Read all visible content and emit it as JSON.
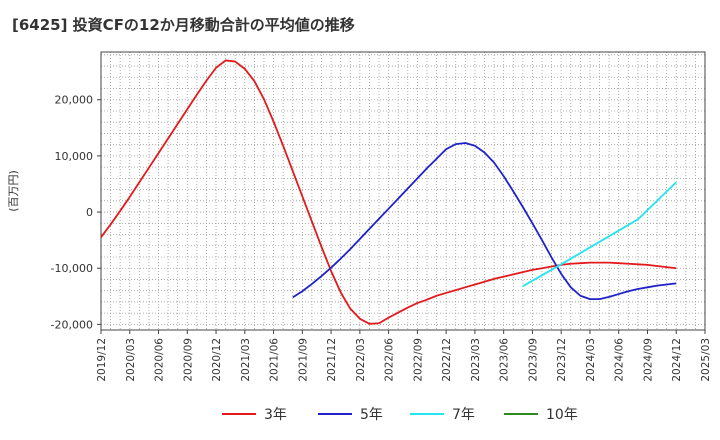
{
  "chart_data": {
    "type": "line",
    "title": "[6425]  投資CFの12か月移動合計の平均値の推移",
    "ylabel": "(百万円)",
    "xlabel": "",
    "grid": true,
    "legend_position": "bottom",
    "ylim": [
      -21000,
      28500
    ],
    "xlim": [
      "2019-12",
      "2025-03"
    ],
    "y_ticks": [
      {
        "value": 20000,
        "label": "20,000"
      },
      {
        "value": 10000,
        "label": "10,000"
      },
      {
        "value": 0,
        "label": "0"
      },
      {
        "value": -10000,
        "label": "-10,000"
      },
      {
        "value": -20000,
        "label": "-20,000"
      }
    ],
    "x_ticks": [
      "2019/12",
      "2020/03",
      "2020/06",
      "2020/09",
      "2020/12",
      "2021/03",
      "2021/06",
      "2021/09",
      "2021/12",
      "2022/03",
      "2022/06",
      "2022/09",
      "2022/12",
      "2023/03",
      "2023/06",
      "2023/09",
      "2023/12",
      "2024/03",
      "2024/06",
      "2024/09",
      "2024/12",
      "2025/03"
    ],
    "series": [
      {
        "name": "3年",
        "color": "#e31a1c",
        "points": [
          [
            "2019-12",
            -4500
          ],
          [
            "2020-01",
            -2200
          ],
          [
            "2020-02",
            200
          ],
          [
            "2020-03",
            2700
          ],
          [
            "2020-04",
            5300
          ],
          [
            "2020-05",
            7900
          ],
          [
            "2020-06",
            10500
          ],
          [
            "2020-07",
            13100
          ],
          [
            "2020-08",
            15700
          ],
          [
            "2020-09",
            18300
          ],
          [
            "2020-10",
            20900
          ],
          [
            "2020-11",
            23400
          ],
          [
            "2020-12",
            25700
          ],
          [
            "2021-01",
            27000
          ],
          [
            "2021-02",
            26800
          ],
          [
            "2021-03",
            25500
          ],
          [
            "2021-04",
            23300
          ],
          [
            "2021-05",
            20100
          ],
          [
            "2021-06",
            16100
          ],
          [
            "2021-07",
            11800
          ],
          [
            "2021-08",
            7300
          ],
          [
            "2021-09",
            2800
          ],
          [
            "2021-10",
            -1700
          ],
          [
            "2021-11",
            -6200
          ],
          [
            "2021-12",
            -10500
          ],
          [
            "2022-01",
            -14300
          ],
          [
            "2022-02",
            -17200
          ],
          [
            "2022-03",
            -19000
          ],
          [
            "2022-04",
            -19900
          ],
          [
            "2022-05",
            -19800
          ],
          [
            "2022-06",
            -18800
          ],
          [
            "2022-07",
            -17900
          ],
          [
            "2022-08",
            -17000
          ],
          [
            "2022-09",
            -16200
          ],
          [
            "2022-10",
            -15600
          ],
          [
            "2022-11",
            -14900
          ],
          [
            "2022-12",
            -14400
          ],
          [
            "2023-01",
            -13900
          ],
          [
            "2023-02",
            -13400
          ],
          [
            "2023-03",
            -12900
          ],
          [
            "2023-04",
            -12400
          ],
          [
            "2023-05",
            -11900
          ],
          [
            "2023-06",
            -11500
          ],
          [
            "2023-07",
            -11100
          ],
          [
            "2023-08",
            -10700
          ],
          [
            "2023-09",
            -10300
          ],
          [
            "2023-10",
            -10000
          ],
          [
            "2023-11",
            -9700
          ],
          [
            "2023-12",
            -9400
          ],
          [
            "2024-01",
            -9200
          ],
          [
            "2024-02",
            -9100
          ],
          [
            "2024-03",
            -9000
          ],
          [
            "2024-04",
            -9000
          ],
          [
            "2024-05",
            -9000
          ],
          [
            "2024-06",
            -9100
          ],
          [
            "2024-07",
            -9200
          ],
          [
            "2024-08",
            -9300
          ],
          [
            "2024-09",
            -9400
          ],
          [
            "2024-10",
            -9600
          ],
          [
            "2024-11",
            -9800
          ],
          [
            "2024-12",
            -10000
          ]
        ]
      },
      {
        "name": "5年",
        "color": "#1f22c8",
        "points": [
          [
            "2021-08",
            -15200
          ],
          [
            "2021-09",
            -14100
          ],
          [
            "2021-10",
            -12800
          ],
          [
            "2021-11",
            -11400
          ],
          [
            "2021-12",
            -9900
          ],
          [
            "2022-01",
            -8300
          ],
          [
            "2022-02",
            -6600
          ],
          [
            "2022-03",
            -4800
          ],
          [
            "2022-04",
            -3000
          ],
          [
            "2022-05",
            -1200
          ],
          [
            "2022-06",
            600
          ],
          [
            "2022-07",
            2400
          ],
          [
            "2022-08",
            4200
          ],
          [
            "2022-09",
            6000
          ],
          [
            "2022-10",
            7800
          ],
          [
            "2022-11",
            9500
          ],
          [
            "2022-12",
            11200
          ],
          [
            "2023-01",
            12100
          ],
          [
            "2023-02",
            12300
          ],
          [
            "2023-03",
            11800
          ],
          [
            "2023-04",
            10600
          ],
          [
            "2023-05",
            8800
          ],
          [
            "2023-06",
            6400
          ],
          [
            "2023-07",
            3700
          ],
          [
            "2023-08",
            900
          ],
          [
            "2023-09",
            -2000
          ],
          [
            "2023-10",
            -5000
          ],
          [
            "2023-11",
            -8100
          ],
          [
            "2023-12",
            -11000
          ],
          [
            "2024-01",
            -13400
          ],
          [
            "2024-02",
            -14900
          ],
          [
            "2024-03",
            -15500
          ],
          [
            "2024-04",
            -15500
          ],
          [
            "2024-05",
            -15100
          ],
          [
            "2024-06",
            -14600
          ],
          [
            "2024-07",
            -14100
          ],
          [
            "2024-08",
            -13700
          ],
          [
            "2024-09",
            -13400
          ],
          [
            "2024-10",
            -13100
          ],
          [
            "2024-11",
            -12900
          ],
          [
            "2024-12",
            -12700
          ]
        ]
      },
      {
        "name": "7年",
        "color": "#22e5f0",
        "points": [
          [
            "2023-08",
            -13200
          ],
          [
            "2023-12",
            -9300
          ],
          [
            "2024-04",
            -5300
          ],
          [
            "2024-08",
            -1300
          ],
          [
            "2024-12",
            5300
          ]
        ]
      },
      {
        "name": "10年",
        "color": "#2e8b22",
        "points": []
      }
    ]
  }
}
